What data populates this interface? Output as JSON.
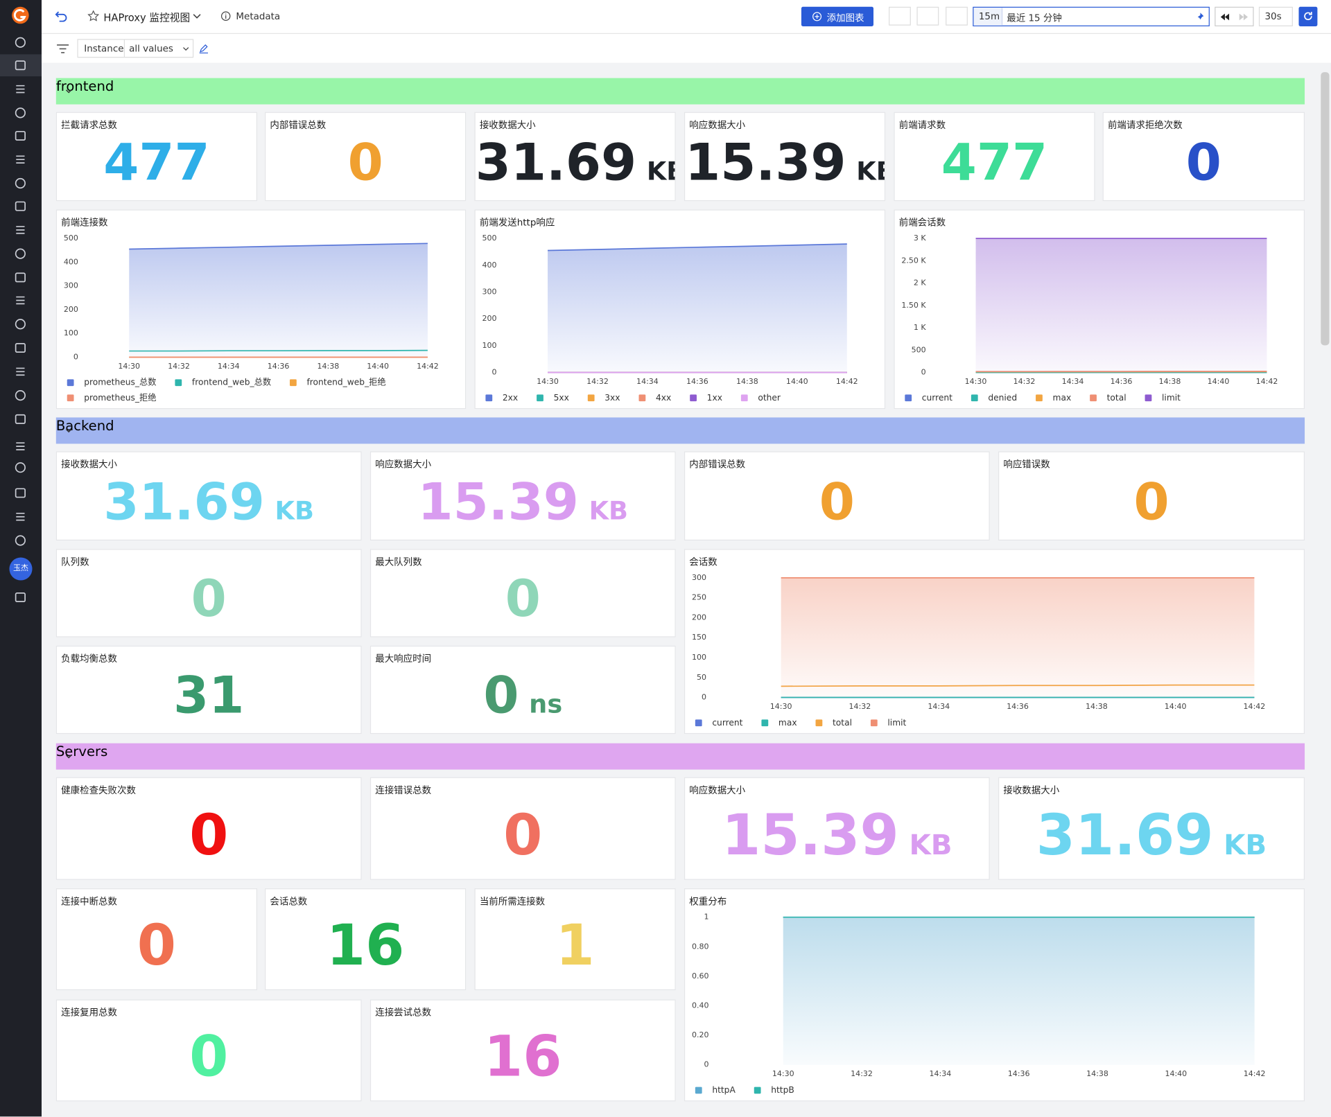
{
  "header": {
    "title": "HAProxy 监控视图",
    "metadata": "Metadata",
    "add_button": "添加图表",
    "time_short": "15m",
    "time_range": "最近 15 分钟",
    "refresh": "30s"
  },
  "filter": {
    "label": "Instance",
    "value": "all values"
  },
  "user": {
    "avatar": "玉杰"
  },
  "sections": [
    {
      "title": "frontend",
      "color": "#98f5a8",
      "panels": [
        {
          "type": "stat",
          "title": "拦截请求总数",
          "value": 477,
          "color": "#2eaee8"
        },
        {
          "type": "stat",
          "title": "内部错误总数",
          "value": 0,
          "color": "#f0a030"
        },
        {
          "type": "stat",
          "title": "接收数据大小",
          "value": 31.69,
          "unit": "KB",
          "color": "#1f2329"
        },
        {
          "type": "stat",
          "title": "响应数据大小",
          "value": 15.39,
          "unit": "KB",
          "color": "#1f2329"
        },
        {
          "type": "stat",
          "title": "前端请求数",
          "value": 477,
          "color": "#3ddc97"
        },
        {
          "type": "stat",
          "title": "前端请求拒绝次数",
          "value": 0,
          "color": "#2850c8"
        },
        {
          "type": "line",
          "title": "前端连接数",
          "categories": [
            "14:30",
            "14:32",
            "14:34",
            "14:36",
            "14:38",
            "14:40",
            "14:42"
          ],
          "ylim": [
            0,
            500
          ],
          "yticks": [
            0,
            100,
            200,
            300,
            400,
            500
          ],
          "series": [
            {
              "name": "prometheus_总数",
              "color": "#5b78d8",
              "fill": true,
              "values": [
                455,
                459,
                463,
                467,
                471,
                475,
                479
              ]
            },
            {
              "name": "frontend_web_总数",
              "color": "#2fb5ad",
              "values": [
                26,
                26,
                27,
                27,
                28,
                28,
                29
              ]
            },
            {
              "name": "frontend_web_拒绝",
              "color": "#f2a541",
              "values": [
                0,
                0,
                0,
                0,
                0,
                0,
                0
              ]
            },
            {
              "name": "prometheus_拒绝",
              "color": "#ef8f73",
              "values": [
                0,
                0,
                0,
                0,
                0,
                0,
                0
              ]
            }
          ]
        },
        {
          "type": "line",
          "title": "前端发送http响应",
          "categories": [
            "14:30",
            "14:32",
            "14:34",
            "14:36",
            "14:38",
            "14:40",
            "14:42"
          ],
          "ylim": [
            0,
            500
          ],
          "yticks": [
            0,
            100,
            200,
            300,
            400,
            500
          ],
          "series": [
            {
              "name": "2xx",
              "color": "#5b78d8",
              "fill": true,
              "values": [
                455,
                459,
                463,
                467,
                471,
                475,
                479
              ]
            },
            {
              "name": "5xx",
              "color": "#2fb5ad",
              "values": [
                0,
                0,
                0,
                0,
                0,
                0,
                0
              ]
            },
            {
              "name": "3xx",
              "color": "#f2a541",
              "values": [
                0,
                0,
                0,
                0,
                0,
                0,
                0
              ]
            },
            {
              "name": "4xx",
              "color": "#ef8f73",
              "values": [
                0,
                0,
                0,
                0,
                0,
                0,
                0
              ]
            },
            {
              "name": "1xx",
              "color": "#8e5bd0",
              "values": [
                0,
                0,
                0,
                0,
                0,
                0,
                0
              ]
            },
            {
              "name": "other",
              "color": "#dea3f0",
              "values": [
                0,
                0,
                0,
                0,
                0,
                0,
                0
              ]
            }
          ]
        },
        {
          "type": "line",
          "title": "前端会话数",
          "categories": [
            "14:30",
            "14:32",
            "14:34",
            "14:36",
            "14:38",
            "14:40",
            "14:42"
          ],
          "ylim": [
            0,
            3000
          ],
          "yticks": [
            0,
            500,
            {
              "value": 1000,
              "label": "1 K"
            },
            {
              "value": 1500,
              "label": "1.50 K"
            },
            {
              "value": 2000,
              "label": "2 K"
            },
            {
              "value": 2500,
              "label": "2.50 K"
            },
            {
              "value": 3000,
              "label": "3 K"
            }
          ],
          "series": [
            {
              "name": "current",
              "color": "#5b78d8",
              "values": [
                0,
                0,
                0,
                0,
                0,
                0,
                0
              ]
            },
            {
              "name": "denied",
              "color": "#2fb5ad",
              "values": [
                0,
                0,
                0,
                0,
                0,
                0,
                0
              ]
            },
            {
              "name": "max",
              "color": "#f2a541",
              "values": [
                15,
                15,
                16,
                16,
                17,
                17,
                18
              ]
            },
            {
              "name": "total",
              "color": "#ef8f73",
              "values": [
                20,
                21,
                22,
                23,
                24,
                25,
                26
              ]
            },
            {
              "name": "limit",
              "color": "#8e5bd0",
              "fill": true,
              "values": [
                3000,
                3000,
                3000,
                3000,
                3000,
                3000,
                3000
              ]
            }
          ]
        }
      ]
    },
    {
      "title": "Backend",
      "color": "#a0b4f0",
      "panels": [
        {
          "type": "stat",
          "title": "接收数据大小",
          "value": 31.69,
          "unit": "KB",
          "color": "#6dd5f0"
        },
        {
          "type": "stat",
          "title": "响应数据大小",
          "value": 15.39,
          "unit": "KB",
          "color": "#d99cf0"
        },
        {
          "type": "stat",
          "title": "内部错误总数",
          "value": 0,
          "color": "#f0a030"
        },
        {
          "type": "stat",
          "title": "响应错误数",
          "value": 0,
          "color": "#f0a030"
        },
        {
          "type": "stat",
          "title": "队列数",
          "value": 0,
          "color": "#8fd6b8"
        },
        {
          "type": "stat",
          "title": "最大队列数",
          "value": 0,
          "color": "#8fd6b8"
        },
        {
          "type": "stat",
          "title": "负载均衡总数",
          "value": 31,
          "color": "#3a9a6e"
        },
        {
          "type": "stat",
          "title": "最大响应时间",
          "value": 0,
          "unit": "ns",
          "color": "#4a9a70"
        },
        {
          "type": "line",
          "title": "会话数",
          "categories": [
            "14:30",
            "14:32",
            "14:34",
            "14:36",
            "14:38",
            "14:40",
            "14:42"
          ],
          "ylim": [
            0,
            300
          ],
          "yticks": [
            0,
            50,
            100,
            150,
            200,
            250,
            300
          ],
          "series": [
            {
              "name": "current",
              "color": "#5b78d8",
              "values": [
                0,
                0,
                0,
                0,
                0,
                0,
                0
              ]
            },
            {
              "name": "max",
              "color": "#2fb5ad",
              "values": [
                0,
                0,
                0,
                0,
                0,
                0,
                0
              ]
            },
            {
              "name": "total",
              "color": "#f2a541",
              "values": [
                28,
                29,
                29,
                30,
                30,
                31,
                31
              ]
            },
            {
              "name": "limit",
              "color": "#ef8f73",
              "fill": true,
              "values": [
                300,
                300,
                300,
                300,
                300,
                300,
                300
              ]
            }
          ]
        }
      ]
    },
    {
      "title": "Servers",
      "color": "#dfa6f0",
      "panels": [
        {
          "type": "stat",
          "title": "健康检查失败次数",
          "value": 0,
          "color": "#f01010"
        },
        {
          "type": "stat",
          "title": "连接错误总数",
          "value": 0,
          "color": "#f07060"
        },
        {
          "type": "stat",
          "title": "响应数据大小",
          "value": 15.39,
          "unit": "KB",
          "color": "#d99cf0"
        },
        {
          "type": "stat",
          "title": "接收数据大小",
          "value": 31.69,
          "unit": "KB",
          "color": "#6dd5f0"
        },
        {
          "type": "stat",
          "title": "连接中断总数",
          "value": 0,
          "color": "#f07050"
        },
        {
          "type": "stat",
          "title": "会话总数",
          "value": 16,
          "color": "#20b050"
        },
        {
          "type": "stat",
          "title": "当前所需连接数",
          "value": 1,
          "color": "#f0d060"
        },
        {
          "type": "stat",
          "title": "连接复用总数",
          "value": 0,
          "color": "#50f0a0"
        },
        {
          "type": "stat",
          "title": "连接尝试总数",
          "value": 16,
          "color": "#e070d0"
        },
        {
          "type": "line",
          "title": "权重分布",
          "categories": [
            "14:30",
            "14:32",
            "14:34",
            "14:36",
            "14:38",
            "14:40",
            "14:42"
          ],
          "ylim": [
            0,
            1
          ],
          "yticks": [
            0,
            {
              "value": 0.2,
              "label": "0.20"
            },
            {
              "value": 0.4,
              "label": "0.40"
            },
            {
              "value": 0.6,
              "label": "0.60"
            },
            {
              "value": 0.8,
              "label": "0.80"
            },
            1
          ],
          "series": [
            {
              "name": "httpA",
              "color": "#5aa9d0",
              "fill": true,
              "values": [
                1,
                1,
                1,
                1,
                1,
                1,
                1
              ]
            },
            {
              "name": "httpB",
              "color": "#2fb5ad",
              "values": [
                1,
                1,
                1,
                1,
                1,
                1,
                1
              ]
            }
          ]
        }
      ]
    }
  ]
}
